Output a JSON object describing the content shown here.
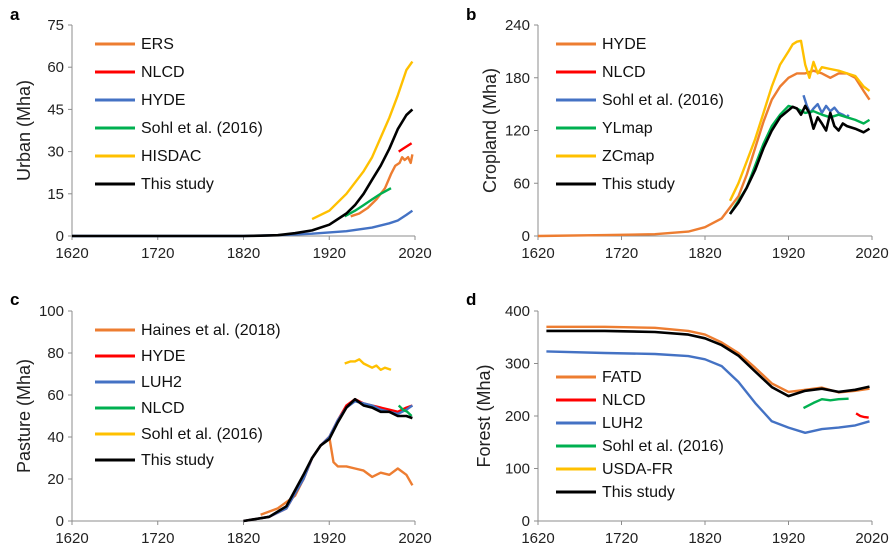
{
  "colors": {
    "orange": "#ED7D31",
    "red": "#FF0000",
    "blue": "#4472C4",
    "green": "#00B050",
    "gold": "#FFC000",
    "black": "#000000"
  },
  "chart_data": [
    {
      "panel": "a",
      "type": "line",
      "xlabel": "",
      "ylabel": "Urban (Mha)",
      "xlim": [
        1620,
        2020
      ],
      "ylim": [
        0,
        75
      ],
      "xticks": [
        "1620",
        "1720",
        "1820",
        "1920",
        "2020"
      ],
      "yticks": [
        "0",
        "15",
        "30",
        "45",
        "60",
        "75"
      ],
      "legend_placement": "top-left",
      "series": [
        {
          "name": "ERS",
          "color": "#ED7D31",
          "x": [
            1945,
            1955,
            1965,
            1975,
            1985,
            1992,
            1997,
            2002,
            2005,
            2008,
            2012,
            2015,
            2017
          ],
          "y": [
            7,
            8,
            10,
            13,
            17,
            22,
            25,
            26,
            28,
            27,
            28,
            26,
            29
          ]
        },
        {
          "name": "NLCD",
          "color": "#FF0000",
          "x": [
            2001,
            2006,
            2011,
            2016
          ],
          "y": [
            30,
            31,
            32,
            33
          ]
        },
        {
          "name": "HYDE",
          "color": "#4472C4",
          "x": [
            1620,
            1820,
            1860,
            1900,
            1940,
            1970,
            1990,
            2000,
            2010,
            2017
          ],
          "y": [
            0,
            0,
            0.3,
            0.8,
            1.7,
            3,
            4.5,
            5.5,
            7.5,
            9
          ]
        },
        {
          "name": "Sohl et al. (2016)",
          "color": "#00B050",
          "x": [
            1938,
            1950,
            1960,
            1970,
            1980,
            1992
          ],
          "y": [
            7,
            9,
            11,
            13,
            15,
            17
          ]
        },
        {
          "name": "HISDAC",
          "color": "#FFC000",
          "x": [
            1900,
            1920,
            1940,
            1960,
            1970,
            1980,
            1990,
            2000,
            2010,
            2017
          ],
          "y": [
            6,
            9,
            15,
            23,
            28,
            35,
            42,
            50,
            59,
            62
          ]
        },
        {
          "name": "This study",
          "color": "#000000",
          "x": [
            1620,
            1820,
            1840,
            1860,
            1880,
            1900,
            1920,
            1940,
            1950,
            1960,
            1970,
            1980,
            1990,
            2000,
            2010,
            2017
          ],
          "y": [
            0,
            0,
            0.1,
            0.3,
            1,
            2,
            4,
            8,
            11,
            15,
            20,
            25,
            31,
            38,
            43,
            45
          ]
        }
      ]
    },
    {
      "panel": "b",
      "type": "line",
      "xlabel": "",
      "ylabel": "Cropland (Mha)",
      "xlim": [
        1620,
        2020
      ],
      "ylim": [
        0,
        240
      ],
      "xticks": [
        "1620",
        "1720",
        "1820",
        "1920",
        "2020"
      ],
      "yticks": [
        "0",
        "60",
        "120",
        "180",
        "240"
      ],
      "legend_placement": "top-left",
      "series": [
        {
          "name": "HYDE",
          "color": "#ED7D31",
          "x": [
            1620,
            1700,
            1760,
            1800,
            1820,
            1840,
            1860,
            1870,
            1880,
            1890,
            1900,
            1910,
            1920,
            1930,
            1940,
            1950,
            1960,
            1970,
            1980,
            1990,
            2000,
            2010,
            2017
          ],
          "y": [
            0,
            1,
            2,
            5,
            10,
            20,
            45,
            70,
            100,
            130,
            155,
            170,
            180,
            185,
            185,
            188,
            185,
            180,
            185,
            185,
            180,
            165,
            155
          ]
        },
        {
          "name": "NLCD",
          "color": "#FF0000",
          "x": [],
          "y": []
        },
        {
          "name": "Sohl et al. (2016)",
          "color": "#4472C4",
          "x": [
            1938,
            1942,
            1946,
            1950,
            1955,
            1960,
            1965,
            1970,
            1975,
            1980,
            1985,
            1990,
            1992
          ],
          "y": [
            160,
            148,
            140,
            145,
            150,
            140,
            148,
            142,
            146,
            140,
            138,
            135,
            138
          ]
        },
        {
          "name": "YLmap",
          "color": "#00B050",
          "x": [
            1850,
            1860,
            1870,
            1880,
            1890,
            1900,
            1910,
            1920,
            1930,
            1940,
            1950,
            1960,
            1970,
            1980,
            1990,
            2000,
            2010,
            2017
          ],
          "y": [
            25,
            40,
            55,
            80,
            105,
            125,
            138,
            148,
            145,
            140,
            142,
            138,
            135,
            138,
            135,
            132,
            128,
            132
          ]
        },
        {
          "name": "ZCmap",
          "color": "#FFC000",
          "x": [
            1850,
            1860,
            1870,
            1880,
            1890,
            1900,
            1910,
            1920,
            1925,
            1930,
            1935,
            1940,
            1945,
            1950,
            1955,
            1960,
            1970,
            1980,
            1990,
            2000,
            2010,
            2017
          ],
          "y": [
            40,
            60,
            85,
            110,
            140,
            170,
            195,
            210,
            218,
            221,
            222,
            195,
            180,
            198,
            185,
            192,
            190,
            188,
            185,
            182,
            170,
            165
          ]
        },
        {
          "name": "This study",
          "color": "#000000",
          "x": [
            1850,
            1860,
            1870,
            1880,
            1890,
            1900,
            1910,
            1920,
            1925,
            1930,
            1935,
            1940,
            1945,
            1950,
            1955,
            1960,
            1965,
            1970,
            1975,
            1980,
            1985,
            1990,
            2000,
            2010,
            2017
          ],
          "y": [
            25,
            38,
            55,
            75,
            100,
            120,
            135,
            143,
            147,
            145,
            138,
            148,
            140,
            122,
            135,
            128,
            120,
            140,
            125,
            120,
            128,
            125,
            122,
            118,
            122
          ]
        }
      ]
    },
    {
      "panel": "c",
      "type": "line",
      "xlabel": "",
      "ylabel": "Pasture (Mha)",
      "xlim": [
        1620,
        2020
      ],
      "ylim": [
        0,
        100
      ],
      "xticks": [
        "1620",
        "1720",
        "1820",
        "1920",
        "2020"
      ],
      "yticks": [
        "0",
        "20",
        "40",
        "60",
        "80",
        "100"
      ],
      "legend_placement": "top-left",
      "series": [
        {
          "name": "Haines et al. (2018)",
          "color": "#ED7D31",
          "x": [
            1840,
            1860,
            1880,
            1890,
            1900,
            1910,
            1920,
            1925,
            1930,
            1940,
            1950,
            1960,
            1970,
            1980,
            1990,
            2000,
            2010,
            2017
          ],
          "y": [
            3,
            6,
            12,
            20,
            30,
            36,
            40,
            28,
            26,
            26,
            25,
            24,
            21,
            23,
            22,
            25,
            22,
            17
          ]
        },
        {
          "name": "HYDE",
          "color": "#FF0000",
          "x": [
            1820,
            1850,
            1870,
            1890,
            1900,
            1910,
            1920,
            1930,
            1940,
            1950,
            1960,
            1970,
            1980,
            1990,
            2000,
            2010,
            2017
          ],
          "y": [
            0,
            2,
            6,
            20,
            30,
            36,
            40,
            48,
            55,
            58,
            56,
            55,
            54,
            53,
            52,
            54,
            55
          ]
        },
        {
          "name": "LUH2",
          "color": "#4472C4",
          "x": [
            1820,
            1850,
            1870,
            1890,
            1900,
            1910,
            1920,
            1930,
            1940,
            1950,
            1960,
            1970,
            1980,
            1990,
            2000,
            2010,
            2017
          ],
          "y": [
            0,
            2,
            6,
            20,
            30,
            36,
            40,
            48,
            54,
            57,
            56,
            55,
            53,
            52,
            51,
            53,
            55
          ]
        },
        {
          "name": "NLCD",
          "color": "#00B050",
          "x": [
            2001,
            2006,
            2011,
            2016
          ],
          "y": [
            55,
            53,
            52,
            50
          ]
        },
        {
          "name": "Sohl et al. (2016)",
          "color": "#FFC000",
          "x": [
            1938,
            1945,
            1950,
            1955,
            1960,
            1965,
            1970,
            1975,
            1980,
            1985,
            1992
          ],
          "y": [
            75,
            76,
            76,
            77,
            75,
            74,
            73,
            74,
            72,
            73,
            72
          ]
        },
        {
          "name": "This study",
          "color": "#000000",
          "x": [
            1820,
            1850,
            1870,
            1890,
            1900,
            1910,
            1920,
            1930,
            1940,
            1950,
            1960,
            1970,
            1980,
            1990,
            2000,
            2010,
            2017
          ],
          "y": [
            0,
            2,
            7,
            22,
            30,
            36,
            39,
            47,
            54,
            58,
            55,
            54,
            52,
            52,
            50,
            50,
            49
          ]
        }
      ]
    },
    {
      "panel": "d",
      "type": "line",
      "xlabel": "",
      "ylabel": "Forest (Mha)",
      "xlim": [
        1620,
        2020
      ],
      "ylim": [
        0,
        400
      ],
      "xticks": [
        "1620",
        "1720",
        "1820",
        "1920",
        "2020"
      ],
      "yticks": [
        "0",
        "100",
        "200",
        "300",
        "400"
      ],
      "legend_placement": "left",
      "series": [
        {
          "name": "FATD",
          "color": "#ED7D31",
          "x": [
            1630,
            1700,
            1760,
            1800,
            1820,
            1840,
            1860,
            1880,
            1900,
            1920,
            1940,
            1960,
            1980,
            2000,
            2017
          ],
          "y": [
            370,
            370,
            368,
            362,
            355,
            340,
            320,
            292,
            262,
            246,
            250,
            254,
            245,
            248,
            252
          ]
        },
        {
          "name": "NLCD",
          "color": "#FF0000",
          "x": [
            2001,
            2006,
            2011,
            2016
          ],
          "y": [
            205,
            200,
            198,
            197
          ]
        },
        {
          "name": "LUH2",
          "color": "#4472C4",
          "x": [
            1630,
            1700,
            1760,
            1800,
            1820,
            1840,
            1860,
            1880,
            1900,
            1920,
            1940,
            1960,
            1980,
            2000,
            2017
          ],
          "y": [
            323,
            320,
            318,
            314,
            308,
            295,
            265,
            225,
            190,
            178,
            168,
            175,
            178,
            182,
            190
          ]
        },
        {
          "name": "Sohl et al. (2016)",
          "color": "#00B050",
          "x": [
            1938,
            1950,
            1960,
            1970,
            1980,
            1992
          ],
          "y": [
            215,
            225,
            232,
            230,
            232,
            233
          ]
        },
        {
          "name": "USDA-FR",
          "color": "#FFC000",
          "x": [],
          "y": []
        },
        {
          "name": "This study",
          "color": "#000000",
          "x": [
            1630,
            1700,
            1760,
            1800,
            1820,
            1840,
            1860,
            1880,
            1900,
            1920,
            1940,
            1960,
            1980,
            2000,
            2017
          ],
          "y": [
            362,
            362,
            360,
            355,
            348,
            335,
            315,
            285,
            255,
            238,
            248,
            252,
            246,
            250,
            256
          ]
        }
      ]
    }
  ]
}
